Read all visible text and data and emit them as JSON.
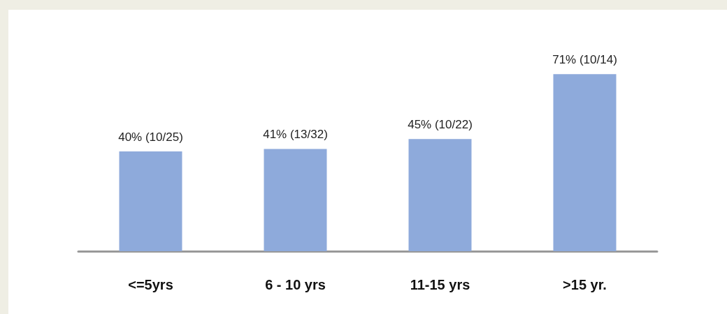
{
  "chart_data": {
    "type": "bar",
    "categories": [
      "<=5yrs",
      "6 - 10 yrs",
      "11-15 yrs",
      ">15 yr."
    ],
    "values": [
      40,
      41,
      45,
      71
    ],
    "value_labels": [
      "40% (10/25)",
      "41% (13/32)",
      "45% (10/22)",
      "71% (10/14)"
    ],
    "color": "#8eaadb",
    "tick_labels": "x"
  }
}
